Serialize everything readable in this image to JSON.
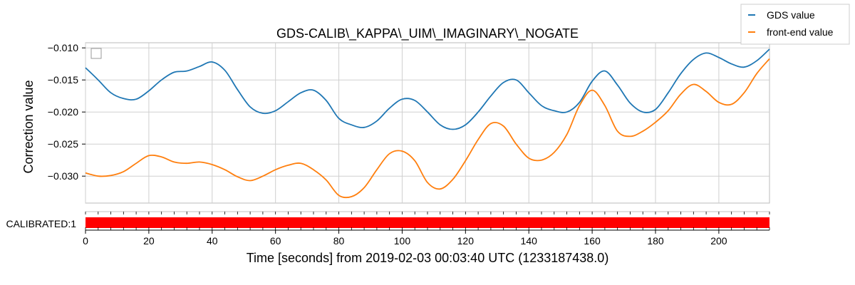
{
  "chart_data": {
    "type": "line",
    "title": "GDS-CALIB\\_KAPPA\\_UIM\\_IMAGINARY\\_NOGATE",
    "xlabel": "Time [seconds] from 2019-02-03 00:03:40 UTC (1233187438.0)",
    "ylabel": "Correction value",
    "xlim": [
      0,
      216
    ],
    "ylim": [
      -0.0342,
      -0.0092
    ],
    "xticks": [
      0,
      20,
      40,
      60,
      80,
      100,
      120,
      140,
      160,
      180,
      200
    ],
    "yticks": [
      -0.03,
      -0.025,
      -0.02,
      -0.015,
      -0.01
    ],
    "ytick_labels": [
      "−0.030",
      "−0.025",
      "−0.020",
      "−0.015",
      "−0.010"
    ],
    "grid": true,
    "legend_position": "top-right, outside the axes",
    "series": [
      {
        "name": "GDS value",
        "color": "#1f77b4",
        "points": [
          [
            0,
            -0.0131
          ],
          [
            4,
            -0.015
          ],
          [
            8,
            -0.017
          ],
          [
            12,
            -0.0179
          ],
          [
            16,
            -0.018
          ],
          [
            20,
            -0.0167
          ],
          [
            24,
            -0.015
          ],
          [
            28,
            -0.0138
          ],
          [
            32,
            -0.0136
          ],
          [
            36,
            -0.0129
          ],
          [
            40,
            -0.0122
          ],
          [
            44,
            -0.0135
          ],
          [
            48,
            -0.0165
          ],
          [
            52,
            -0.0192
          ],
          [
            56,
            -0.0202
          ],
          [
            60,
            -0.0198
          ],
          [
            64,
            -0.0184
          ],
          [
            68,
            -0.017
          ],
          [
            72,
            -0.0166
          ],
          [
            76,
            -0.0182
          ],
          [
            80,
            -0.021
          ],
          [
            84,
            -0.022
          ],
          [
            88,
            -0.0224
          ],
          [
            92,
            -0.0214
          ],
          [
            96,
            -0.0194
          ],
          [
            100,
            -0.018
          ],
          [
            104,
            -0.0182
          ],
          [
            108,
            -0.02
          ],
          [
            112,
            -0.022
          ],
          [
            116,
            -0.0227
          ],
          [
            120,
            -0.022
          ],
          [
            124,
            -0.02
          ],
          [
            128,
            -0.0175
          ],
          [
            132,
            -0.0154
          ],
          [
            136,
            -0.015
          ],
          [
            140,
            -0.017
          ],
          [
            144,
            -0.019
          ],
          [
            148,
            -0.0198
          ],
          [
            152,
            -0.02
          ],
          [
            156,
            -0.0185
          ],
          [
            160,
            -0.0152
          ],
          [
            164,
            -0.0136
          ],
          [
            168,
            -0.0158
          ],
          [
            172,
            -0.0186
          ],
          [
            176,
            -0.02
          ],
          [
            180,
            -0.0196
          ],
          [
            184,
            -0.017
          ],
          [
            188,
            -0.014
          ],
          [
            192,
            -0.0118
          ],
          [
            196,
            -0.0108
          ],
          [
            200,
            -0.0115
          ],
          [
            204,
            -0.0125
          ],
          [
            208,
            -0.013
          ],
          [
            212,
            -0.012
          ],
          [
            216,
            -0.0102
          ]
        ]
      },
      {
        "name": "front-end value",
        "color": "#ff7f0e",
        "points": [
          [
            0,
            -0.0295
          ],
          [
            4,
            -0.03
          ],
          [
            8,
            -0.0299
          ],
          [
            12,
            -0.0293
          ],
          [
            16,
            -0.028
          ],
          [
            20,
            -0.0268
          ],
          [
            24,
            -0.027
          ],
          [
            28,
            -0.0278
          ],
          [
            32,
            -0.028
          ],
          [
            36,
            -0.0278
          ],
          [
            40,
            -0.0282
          ],
          [
            44,
            -0.029
          ],
          [
            48,
            -0.0301
          ],
          [
            52,
            -0.0307
          ],
          [
            56,
            -0.03
          ],
          [
            60,
            -0.029
          ],
          [
            64,
            -0.0283
          ],
          [
            68,
            -0.028
          ],
          [
            72,
            -0.029
          ],
          [
            76,
            -0.0306
          ],
          [
            80,
            -0.033
          ],
          [
            84,
            -0.0332
          ],
          [
            88,
            -0.0318
          ],
          [
            92,
            -0.029
          ],
          [
            96,
            -0.0265
          ],
          [
            100,
            -0.0261
          ],
          [
            104,
            -0.0276
          ],
          [
            108,
            -0.031
          ],
          [
            112,
            -0.032
          ],
          [
            116,
            -0.0305
          ],
          [
            120,
            -0.0276
          ],
          [
            124,
            -0.0243
          ],
          [
            128,
            -0.0218
          ],
          [
            132,
            -0.0222
          ],
          [
            136,
            -0.025
          ],
          [
            140,
            -0.0272
          ],
          [
            144,
            -0.0275
          ],
          [
            148,
            -0.0263
          ],
          [
            152,
            -0.0235
          ],
          [
            156,
            -0.019
          ],
          [
            160,
            -0.0166
          ],
          [
            164,
            -0.019
          ],
          [
            168,
            -0.023
          ],
          [
            172,
            -0.0238
          ],
          [
            176,
            -0.023
          ],
          [
            180,
            -0.0216
          ],
          [
            184,
            -0.0198
          ],
          [
            188,
            -0.0172
          ],
          [
            192,
            -0.0157
          ],
          [
            196,
            -0.0168
          ],
          [
            200,
            -0.0185
          ],
          [
            204,
            -0.0188
          ],
          [
            208,
            -0.017
          ],
          [
            212,
            -0.014
          ],
          [
            216,
            -0.0117
          ]
        ]
      }
    ],
    "segment_bar": {
      "label": "CALIBRATED:1",
      "color": "#ff0000",
      "active_range": [
        0,
        216
      ]
    }
  }
}
